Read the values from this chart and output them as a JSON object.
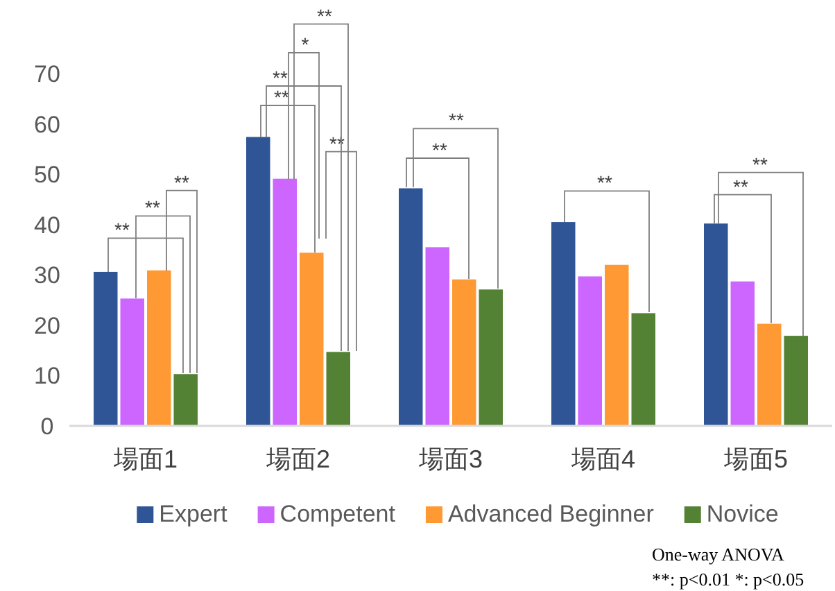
{
  "chart_data": {
    "type": "bar",
    "categories": [
      "場面1",
      "場面2",
      "場面3",
      "場面4",
      "場面5"
    ],
    "series": [
      {
        "name": "Expert",
        "color": "#2f5597",
        "values": [
          30.6,
          57.4,
          47.2,
          40.5,
          40.2
        ]
      },
      {
        "name": "Competent",
        "color": "#cc66ff",
        "values": [
          25.3,
          49.1,
          35.5,
          29.7,
          28.7
        ]
      },
      {
        "name": "Advanced Beginner",
        "color": "#ff9933",
        "values": [
          30.9,
          34.4,
          29.1,
          32.0,
          20.3
        ]
      },
      {
        "name": "Novice",
        "color": "#548235",
        "values": [
          10.3,
          14.7,
          27.1,
          22.4,
          17.9
        ]
      }
    ],
    "ylim": [
      0,
      70
    ],
    "yticks": [
      0,
      10,
      20,
      30,
      40,
      50,
      60,
      70
    ],
    "grid": false,
    "legend": "bottom",
    "annotations": [
      "**",
      "**",
      "**",
      "**",
      "**",
      "**",
      "*",
      "**",
      "**",
      "**",
      "**",
      "**",
      "**",
      "One-way ANOVA",
      "**: p<0.01  *: p<0.05"
    ]
  }
}
